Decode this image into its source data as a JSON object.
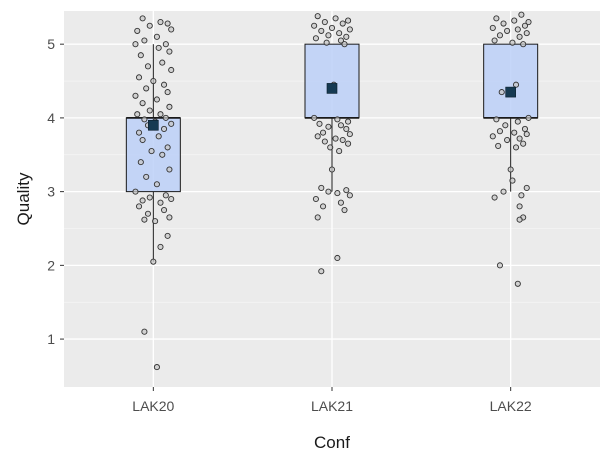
{
  "chart_data": {
    "type": "box",
    "xlabel": "Conf",
    "ylabel": "Quality",
    "categories": [
      "LAK20",
      "LAK21",
      "LAK22"
    ],
    "ylim": [
      0.35,
      5.45
    ],
    "yticks": [
      1,
      2,
      3,
      4,
      5
    ],
    "grid": true,
    "boxes": [
      {
        "category": "LAK20",
        "whisker_low": 2.05,
        "q1": 3.0,
        "median": 4.0,
        "q3": 4.0,
        "whisker_high": 5.0,
        "mean": 3.9
      },
      {
        "category": "LAK21",
        "whisker_low": 3.0,
        "q1": 4.0,
        "median": 4.0,
        "q3": 5.0,
        "whisker_high": 5.0,
        "mean": 4.4
      },
      {
        "category": "LAK22",
        "whisker_low": 3.0,
        "q1": 4.0,
        "median": 4.0,
        "q3": 5.0,
        "whisker_high": 5.0,
        "mean": 4.35
      }
    ],
    "points": [
      {
        "category": "LAK20",
        "values": [
          5.35,
          5.3,
          5.28,
          5.25,
          5.2,
          5.18,
          5.1,
          5.05,
          5.0,
          5.0,
          4.95,
          4.9,
          4.85,
          4.75,
          4.7,
          4.65,
          4.55,
          4.5,
          4.45,
          4.4,
          4.35,
          4.3,
          4.25,
          4.2,
          4.15,
          4.1,
          4.05,
          4.05,
          4.0,
          3.98,
          3.95,
          3.92,
          3.9,
          3.85,
          3.8,
          3.75,
          3.7,
          3.6,
          3.55,
          3.5,
          3.4,
          3.3,
          3.2,
          3.1,
          3.0,
          2.95,
          2.92,
          2.9,
          2.88,
          2.85,
          2.8,
          2.75,
          2.7,
          2.65,
          2.62,
          2.6,
          2.4,
          2.25,
          2.05,
          1.1,
          0.62
        ],
        "jitter": [
          -0.06,
          0.04,
          0.08,
          -0.02,
          0.1,
          -0.09,
          0.02,
          -0.05,
          0.07,
          -0.1,
          0.03,
          0.09,
          -0.07,
          0.05,
          -0.03,
          0.1,
          -0.08,
          0.0,
          0.06,
          -0.04,
          0.08,
          -0.1,
          0.02,
          -0.06,
          0.09,
          -0.02,
          0.04,
          -0.09,
          0.07,
          -0.05,
          0.01,
          0.1,
          -0.03,
          0.06,
          -0.08,
          0.03,
          -0.06,
          0.08,
          -0.01,
          0.05,
          -0.07,
          0.09,
          -0.04,
          0.02,
          -0.1,
          0.07,
          -0.02,
          0.1,
          -0.06,
          0.04,
          -0.08,
          0.06,
          -0.03,
          0.09,
          -0.05,
          0.01,
          0.08,
          0.04,
          0.0,
          -0.05,
          0.02
        ]
      },
      {
        "category": "LAK21",
        "values": [
          5.38,
          5.35,
          5.32,
          5.3,
          5.28,
          5.25,
          5.22,
          5.2,
          5.18,
          5.15,
          5.12,
          5.1,
          5.08,
          5.05,
          5.02,
          5.0,
          4.45,
          4.0,
          3.98,
          3.95,
          3.92,
          3.9,
          3.88,
          3.85,
          3.8,
          3.78,
          3.75,
          3.72,
          3.7,
          3.68,
          3.65,
          3.6,
          3.55,
          3.3,
          3.05,
          3.02,
          3.0,
          2.98,
          2.95,
          2.9,
          2.85,
          2.8,
          2.75,
          2.65,
          2.1,
          1.92
        ],
        "jitter": [
          -0.08,
          0.02,
          0.09,
          -0.04,
          0.06,
          -0.1,
          0.0,
          0.1,
          -0.06,
          0.04,
          -0.02,
          0.08,
          -0.09,
          0.05,
          -0.03,
          0.07,
          0.01,
          -0.1,
          0.03,
          0.09,
          -0.07,
          0.05,
          -0.02,
          0.08,
          -0.05,
          0.1,
          -0.08,
          0.02,
          0.06,
          -0.04,
          0.09,
          -0.01,
          0.04,
          0.0,
          -0.06,
          0.08,
          -0.02,
          0.03,
          0.1,
          -0.09,
          0.05,
          -0.05,
          0.07,
          -0.08,
          0.03,
          -0.06
        ]
      },
      {
        "category": "LAK22",
        "values": [
          5.4,
          5.35,
          5.32,
          5.3,
          5.28,
          5.25,
          5.22,
          5.2,
          5.18,
          5.15,
          5.12,
          5.1,
          5.05,
          5.02,
          5.0,
          4.45,
          4.35,
          4.0,
          3.98,
          3.95,
          3.9,
          3.85,
          3.82,
          3.8,
          3.78,
          3.75,
          3.72,
          3.7,
          3.65,
          3.62,
          3.6,
          3.3,
          3.15,
          3.05,
          3.0,
          2.95,
          2.92,
          2.8,
          2.65,
          2.62,
          2.0,
          1.75
        ],
        "jitter": [
          0.06,
          -0.08,
          0.02,
          0.1,
          -0.04,
          0.08,
          -0.1,
          0.04,
          -0.02,
          0.09,
          -0.06,
          0.05,
          -0.09,
          0.01,
          0.07,
          0.03,
          -0.05,
          0.1,
          -0.08,
          0.04,
          -0.03,
          0.08,
          -0.06,
          0.02,
          0.09,
          -0.1,
          0.05,
          -0.02,
          0.07,
          -0.07,
          0.03,
          0.0,
          0.01,
          0.09,
          -0.04,
          0.06,
          -0.09,
          0.05,
          0.07,
          0.05,
          -0.06,
          0.04
        ]
      }
    ]
  },
  "colors": {
    "panel": "#ebebeb",
    "grid": "#ffffff",
    "box_fill": "#bcd0f8",
    "box_stroke": "#1a1a1a",
    "point_fill": "#c8c8c8",
    "point_stroke": "#333333",
    "mean_fill": "#163a52",
    "text": "#4d4d4d"
  }
}
